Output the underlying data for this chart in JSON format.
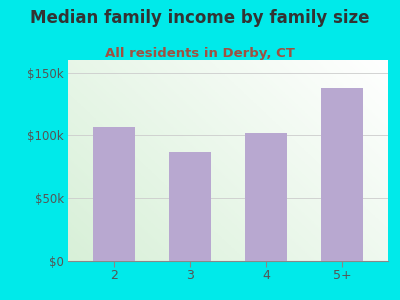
{
  "title": "Median family income by family size",
  "subtitle": "All residents in Derby, CT",
  "categories": [
    "2",
    "3",
    "4",
    "5+"
  ],
  "values": [
    107000,
    87000,
    102000,
    138000
  ],
  "bar_color": "#b8a8d0",
  "background_color": "#00eaea",
  "plot_bg_color_top_right": "#e8f5e8",
  "plot_bg_color_bottom_left": "#f5fef5",
  "title_color": "#333333",
  "subtitle_color": "#a05040",
  "yticks": [
    0,
    50000,
    100000,
    150000
  ],
  "ytick_labels": [
    "$0",
    "$50k",
    "$100k",
    "$150k"
  ],
  "ylim": [
    0,
    160000
  ],
  "title_fontsize": 12,
  "subtitle_fontsize": 9.5,
  "tick_fontsize": 8.5,
  "xtick_fontsize": 9
}
